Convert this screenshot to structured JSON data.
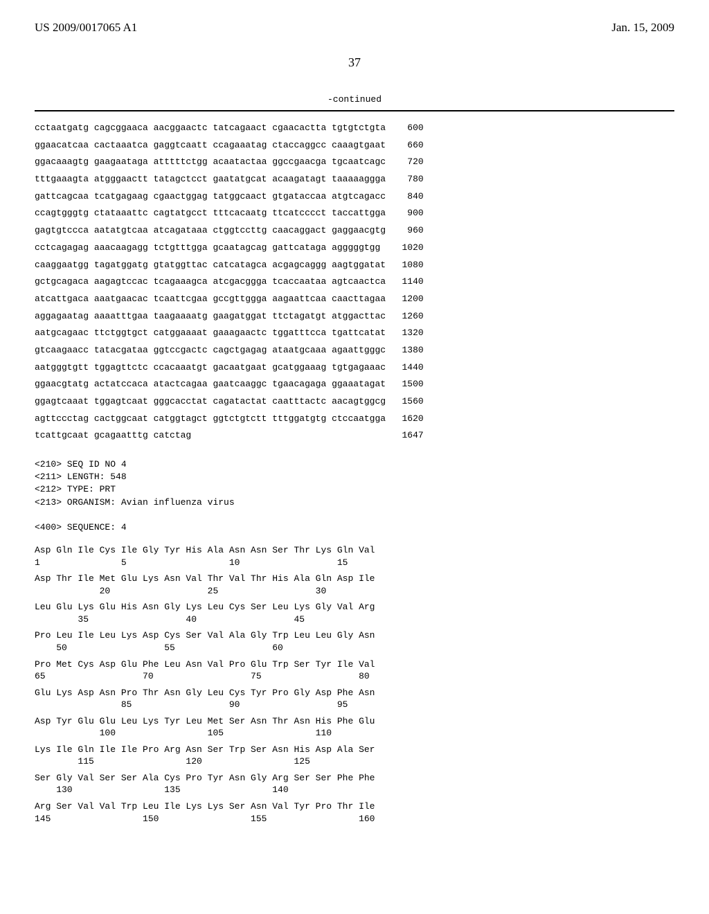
{
  "header": {
    "pub_number": "US 2009/0017065 A1",
    "pub_date": "Jan. 15, 2009"
  },
  "page_number": "37",
  "continued_label": "-continued",
  "dna_sequence": {
    "rows": [
      {
        "groups": [
          "cctaatgatg",
          "cagcggaaca",
          "aacggaactc",
          "tatcagaact",
          "cgaacactta",
          "tgtgtctgta"
        ],
        "pos": "600"
      },
      {
        "groups": [
          "ggaacatcaa",
          "cactaaatca",
          "gaggtcaatt",
          "ccagaaatag",
          "ctaccaggcc",
          "caaagtgaat"
        ],
        "pos": "660"
      },
      {
        "groups": [
          "ggacaaagtg",
          "gaagaataga",
          "atttttctgg",
          "acaatactaa",
          "ggccgaacga",
          "tgcaatcagc"
        ],
        "pos": "720"
      },
      {
        "groups": [
          "tttgaaagta",
          "atgggaactt",
          "tatagctcct",
          "gaatatgcat",
          "acaagatagt",
          "taaaaaggga"
        ],
        "pos": "780"
      },
      {
        "groups": [
          "gattcagcaa",
          "tcatgagaag",
          "cgaactggag",
          "tatggcaact",
          "gtgataccaa",
          "atgtcagacc"
        ],
        "pos": "840"
      },
      {
        "groups": [
          "ccagtgggtg",
          "ctataaattc",
          "cagtatgcct",
          "tttcacaatg",
          "ttcatcccct",
          "taccattgga"
        ],
        "pos": "900"
      },
      {
        "groups": [
          "gagtgtccca",
          "aatatgtcaa",
          "atcagataaa",
          "ctggtccttg",
          "caacaggact",
          "gaggaacgtg"
        ],
        "pos": "960"
      },
      {
        "groups": [
          "cctcagagag",
          "aaacaagagg",
          "tctgtttgga",
          "gcaatagcag",
          "gattcataga",
          "agggggtgg"
        ],
        "pos": "1020"
      },
      {
        "groups": [
          "caaggaatgg",
          "tagatggatg",
          "gtatggttac",
          "catcatagca",
          "acgagcaggg",
          "aagtggatat"
        ],
        "pos": "1080"
      },
      {
        "groups": [
          "gctgcagaca",
          "aagagtccac",
          "tcagaaagca",
          "atcgacggga",
          "tcaccaataa",
          "agtcaactca"
        ],
        "pos": "1140"
      },
      {
        "groups": [
          "atcattgaca",
          "aaatgaacac",
          "tcaattcgaa",
          "gccgttggga",
          "aagaattcaa",
          "caacttagaa"
        ],
        "pos": "1200"
      },
      {
        "groups": [
          "aggagaatag",
          "aaaatttgaa",
          "taagaaaatg",
          "gaagatggat",
          "ttctagatgt",
          "atggacttac"
        ],
        "pos": "1260"
      },
      {
        "groups": [
          "aatgcagaac",
          "ttctggtgct",
          "catggaaaat",
          "gaaagaactc",
          "tggatttcca",
          "tgattcatat"
        ],
        "pos": "1320"
      },
      {
        "groups": [
          "gtcaagaacc",
          "tatacgataa",
          "ggtccgactc",
          "cagctgagag",
          "ataatgcaaa",
          "agaattgggc"
        ],
        "pos": "1380"
      },
      {
        "groups": [
          "aatgggtgtt",
          "tggagttctc",
          "ccacaaatgt",
          "gacaatgaat",
          "gcatggaaag",
          "tgtgagaaac"
        ],
        "pos": "1440"
      },
      {
        "groups": [
          "ggaacgtatg",
          "actatccaca",
          "atactcagaa",
          "gaatcaaggc",
          "tgaacagaga",
          "ggaaatagat"
        ],
        "pos": "1500"
      },
      {
        "groups": [
          "ggagtcaaat",
          "tggagtcaat",
          "gggcacctat",
          "cagatactat",
          "caatttactc",
          "aacagtggcg"
        ],
        "pos": "1560"
      },
      {
        "groups": [
          "agttccctag",
          "cactggcaat",
          "catggtagct",
          "ggtctgtctt",
          "tttggatgtg",
          "ctccaatgga"
        ],
        "pos": "1620"
      },
      {
        "groups": [
          "tcattgcaat",
          "gcagaatttg",
          "catctag"
        ],
        "pos": "1647"
      }
    ]
  },
  "metadata": {
    "seq_id": "<210> SEQ ID NO 4",
    "length": "<211> LENGTH: 548",
    "type": "<212> TYPE: PRT",
    "organism": "<213> ORGANISM: Avian influenza virus",
    "sequence_label": "<400> SEQUENCE: 4"
  },
  "protein_sequence": {
    "rows": [
      {
        "aa": "Asp Gln Ile Cys Ile Gly Tyr His Ala Asn Asn Ser Thr Lys Gln Val",
        "nums": "1               5                   10                  15"
      },
      {
        "aa": "Asp Thr Ile Met Glu Lys Asn Val Thr Val Thr His Ala Gln Asp Ile",
        "nums": "            20                  25                  30"
      },
      {
        "aa": "Leu Glu Lys Glu His Asn Gly Lys Leu Cys Ser Leu Lys Gly Val Arg",
        "nums": "        35                  40                  45"
      },
      {
        "aa": "Pro Leu Ile Leu Lys Asp Cys Ser Val Ala Gly Trp Leu Leu Gly Asn",
        "nums": "    50                  55                  60"
      },
      {
        "aa": "Pro Met Cys Asp Glu Phe Leu Asn Val Pro Glu Trp Ser Tyr Ile Val",
        "nums": "65                  70                  75                  80"
      },
      {
        "aa": "Glu Lys Asp Asn Pro Thr Asn Gly Leu Cys Tyr Pro Gly Asp Phe Asn",
        "nums": "                85                  90                  95"
      },
      {
        "aa": "Asp Tyr Glu Glu Leu Lys Tyr Leu Met Ser Asn Thr Asn His Phe Glu",
        "nums": "            100                 105                 110"
      },
      {
        "aa": "Lys Ile Gln Ile Ile Pro Arg Asn Ser Trp Ser Asn His Asp Ala Ser",
        "nums": "        115                 120                 125"
      },
      {
        "aa": "Ser Gly Val Ser Ser Ala Cys Pro Tyr Asn Gly Arg Ser Ser Phe Phe",
        "nums": "    130                 135                 140"
      },
      {
        "aa": "Arg Ser Val Val Trp Leu Ile Lys Lys Ser Asn Val Tyr Pro Thr Ile",
        "nums": "145                 150                 155                 160"
      }
    ]
  }
}
